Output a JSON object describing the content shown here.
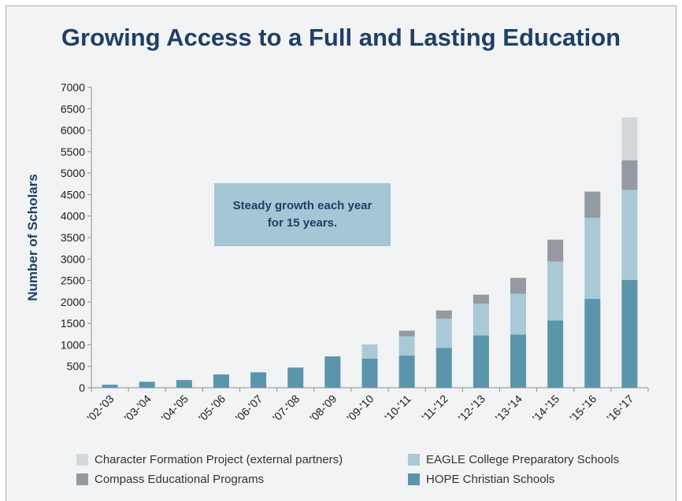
{
  "chart_data": {
    "type": "bar",
    "stacked": true,
    "title": "Growing Access to a Full and Lasting Education",
    "ylabel": "Number of Scholars",
    "xlabel": "",
    "ylim": [
      0,
      7000
    ],
    "yticks": [
      0,
      500,
      1000,
      1500,
      2000,
      2500,
      3000,
      3500,
      4000,
      4500,
      5000,
      5500,
      6000,
      6500,
      7000
    ],
    "grid": false,
    "legend_position": "bottom",
    "categories": [
      "'02-'03",
      "'03-'04",
      "'04-'05",
      "'05-'06",
      "'06-'07",
      "'07-'08",
      "'08-'09",
      "'09-'10",
      "'10-'11",
      "'11-'12",
      "'12-'13",
      "'13-'14",
      "'14-'15",
      "'15-'16",
      "'16-'17"
    ],
    "series": [
      {
        "name": "HOPE Christian Schools",
        "color": "#5b95ac",
        "values": [
          70,
          140,
          180,
          310,
          360,
          470,
          730,
          680,
          750,
          930,
          1220,
          1240,
          1570,
          2070,
          2510
        ]
      },
      {
        "name": "EAGLE College Preparatory Schools",
        "color": "#a9c9d6",
        "values": [
          0,
          0,
          0,
          0,
          0,
          0,
          0,
          330,
          450,
          680,
          740,
          950,
          1370,
          1890,
          2100
        ]
      },
      {
        "name": "Compass Educational Programs",
        "color": "#939aa1",
        "values": [
          0,
          0,
          0,
          0,
          0,
          0,
          0,
          0,
          130,
          190,
          210,
          370,
          510,
          610,
          690
        ]
      },
      {
        "name": "Character Formation Project (external partners)",
        "color": "#d5d8da",
        "values": [
          0,
          0,
          0,
          0,
          0,
          0,
          0,
          0,
          0,
          0,
          0,
          0,
          0,
          0,
          1000
        ]
      }
    ],
    "annotation": "Steady growth each year for 15 years."
  }
}
